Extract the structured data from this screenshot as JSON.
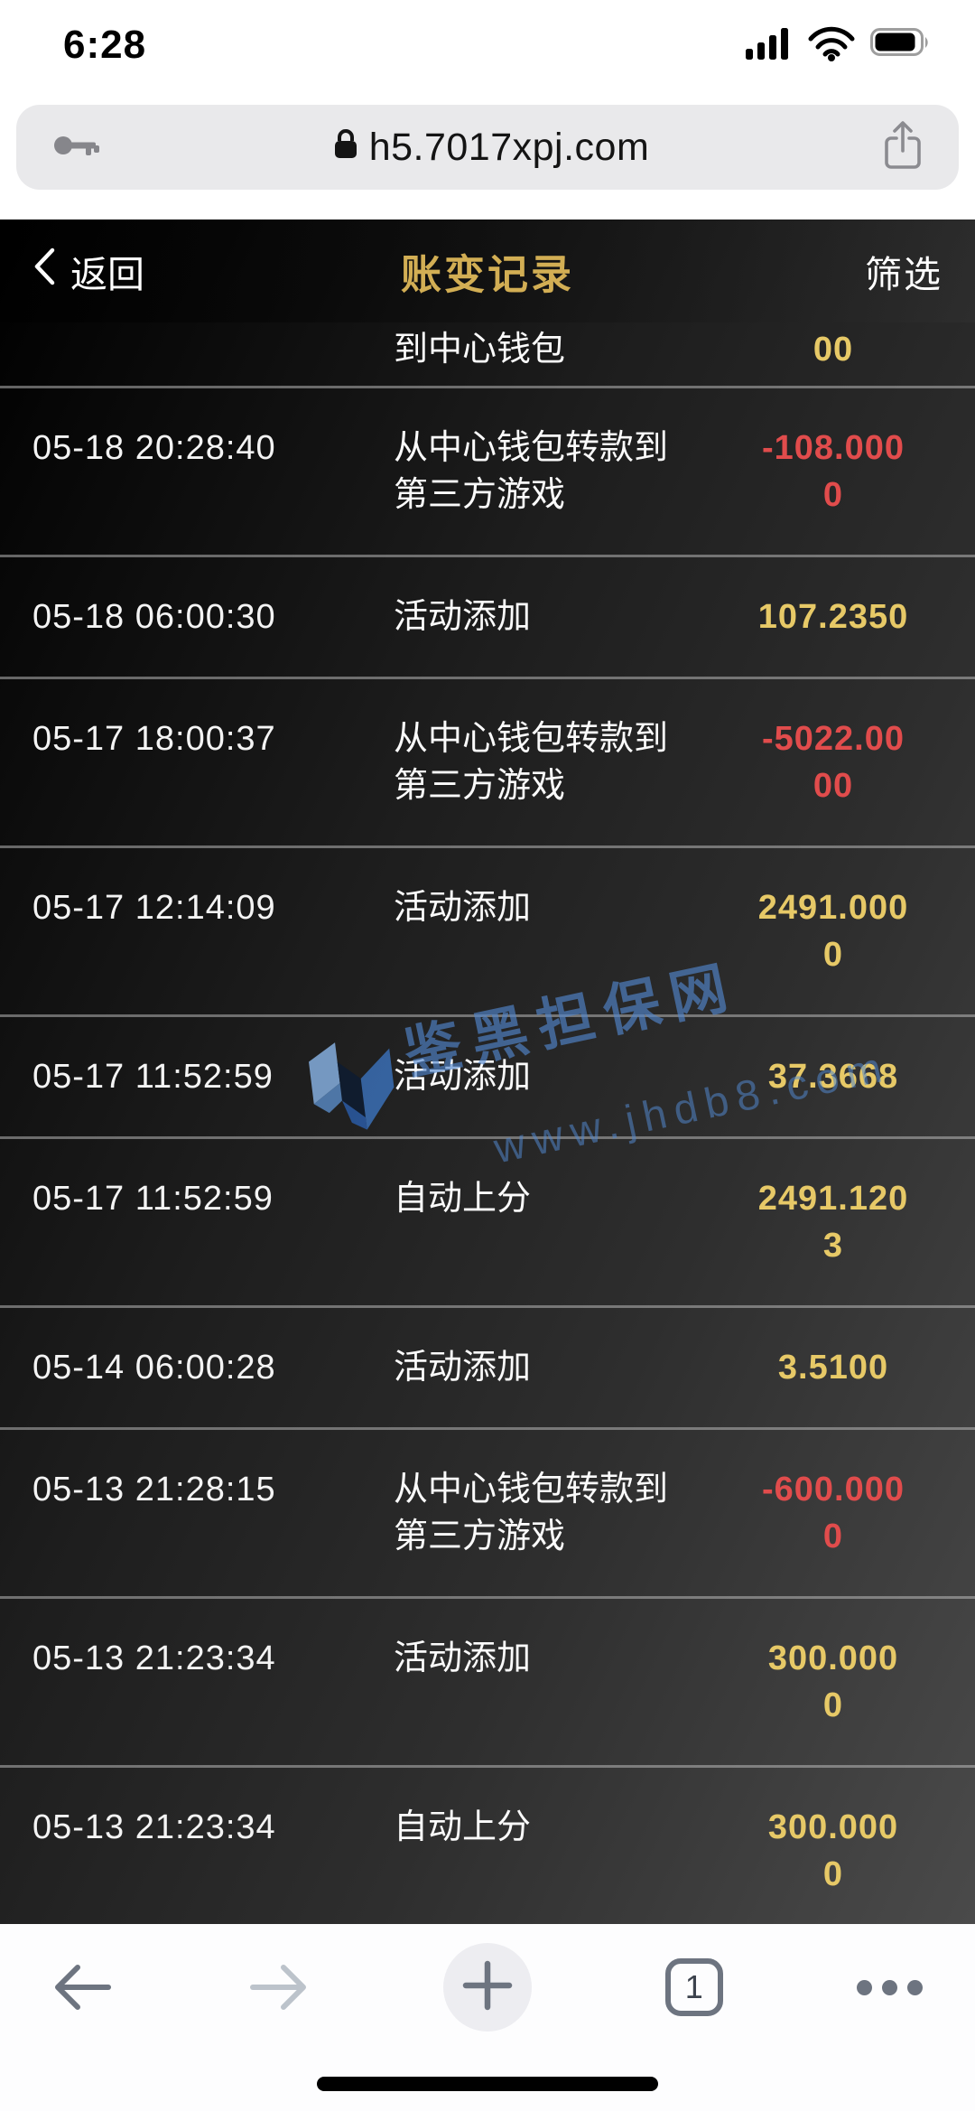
{
  "status_bar": {
    "time": "6:28"
  },
  "browser": {
    "url": "h5.7017xpj.com",
    "icons": [
      "key-icon",
      "lock-icon",
      "share-icon"
    ]
  },
  "header": {
    "back_label": "返回",
    "title": "账变记录",
    "filter_label": "筛选"
  },
  "watermark": {
    "site_name": "鉴黑担保网",
    "site_url": "www.jhdb8.com",
    "blue": "#4a7fc8"
  },
  "records": [
    {
      "time": "",
      "desc_lines": [
        "到中心钱包"
      ],
      "amount": "00",
      "amount_lines": [
        "00"
      ],
      "type": "positive",
      "partial": true
    },
    {
      "time": "05-18 20:28:40",
      "desc_lines": [
        "从中心钱包转款到",
        "第三方游戏"
      ],
      "amount": "-108.0000",
      "amount_lines": [
        "-108.000",
        "0"
      ],
      "type": "negative",
      "partial": false
    },
    {
      "time": "05-18 06:00:30",
      "desc_lines": [
        "活动添加"
      ],
      "amount": "107.2350",
      "amount_lines": [
        "107.2350"
      ],
      "type": "positive",
      "partial": false
    },
    {
      "time": "05-17 18:00:37",
      "desc_lines": [
        "从中心钱包转款到",
        "第三方游戏"
      ],
      "amount": "-5022.0000",
      "amount_lines": [
        "-5022.00",
        "00"
      ],
      "type": "negative",
      "partial": false
    },
    {
      "time": "05-17 12:14:09",
      "desc_lines": [
        "活动添加"
      ],
      "amount": "2491.0000",
      "amount_lines": [
        "2491.000",
        "0"
      ],
      "type": "positive",
      "partial": false
    },
    {
      "time": "05-17 11:52:59",
      "desc_lines": [
        "活动添加"
      ],
      "amount": "37.3668",
      "amount_lines": [
        "37.3668"
      ],
      "type": "positive",
      "partial": false
    },
    {
      "time": "05-17 11:52:59",
      "desc_lines": [
        "自动上分"
      ],
      "amount": "2491.1203",
      "amount_lines": [
        "2491.120",
        "3"
      ],
      "type": "positive",
      "partial": false
    },
    {
      "time": "05-14 06:00:28",
      "desc_lines": [
        "活动添加"
      ],
      "amount": "3.5100",
      "amount_lines": [
        "3.5100"
      ],
      "type": "positive",
      "partial": false
    },
    {
      "time": "05-13 21:28:15",
      "desc_lines": [
        "从中心钱包转款到",
        "第三方游戏"
      ],
      "amount": "-600.0000",
      "amount_lines": [
        "-600.000",
        "0"
      ],
      "type": "negative",
      "partial": false
    },
    {
      "time": "05-13 21:23:34",
      "desc_lines": [
        "活动添加"
      ],
      "amount": "300.0000",
      "amount_lines": [
        "300.000",
        "0"
      ],
      "type": "positive",
      "partial": false
    },
    {
      "time": "05-13 21:23:34",
      "desc_lines": [
        "自动上分"
      ],
      "amount": "300.0000",
      "amount_lines": [
        "300.000",
        "0"
      ],
      "type": "positive",
      "partial": false
    }
  ],
  "toolbar": {
    "tab_count": "1"
  },
  "colors": {
    "title_gold": "#d2ae54",
    "amount_positive": "#e7c967",
    "amount_negative": "#e14c4c"
  }
}
